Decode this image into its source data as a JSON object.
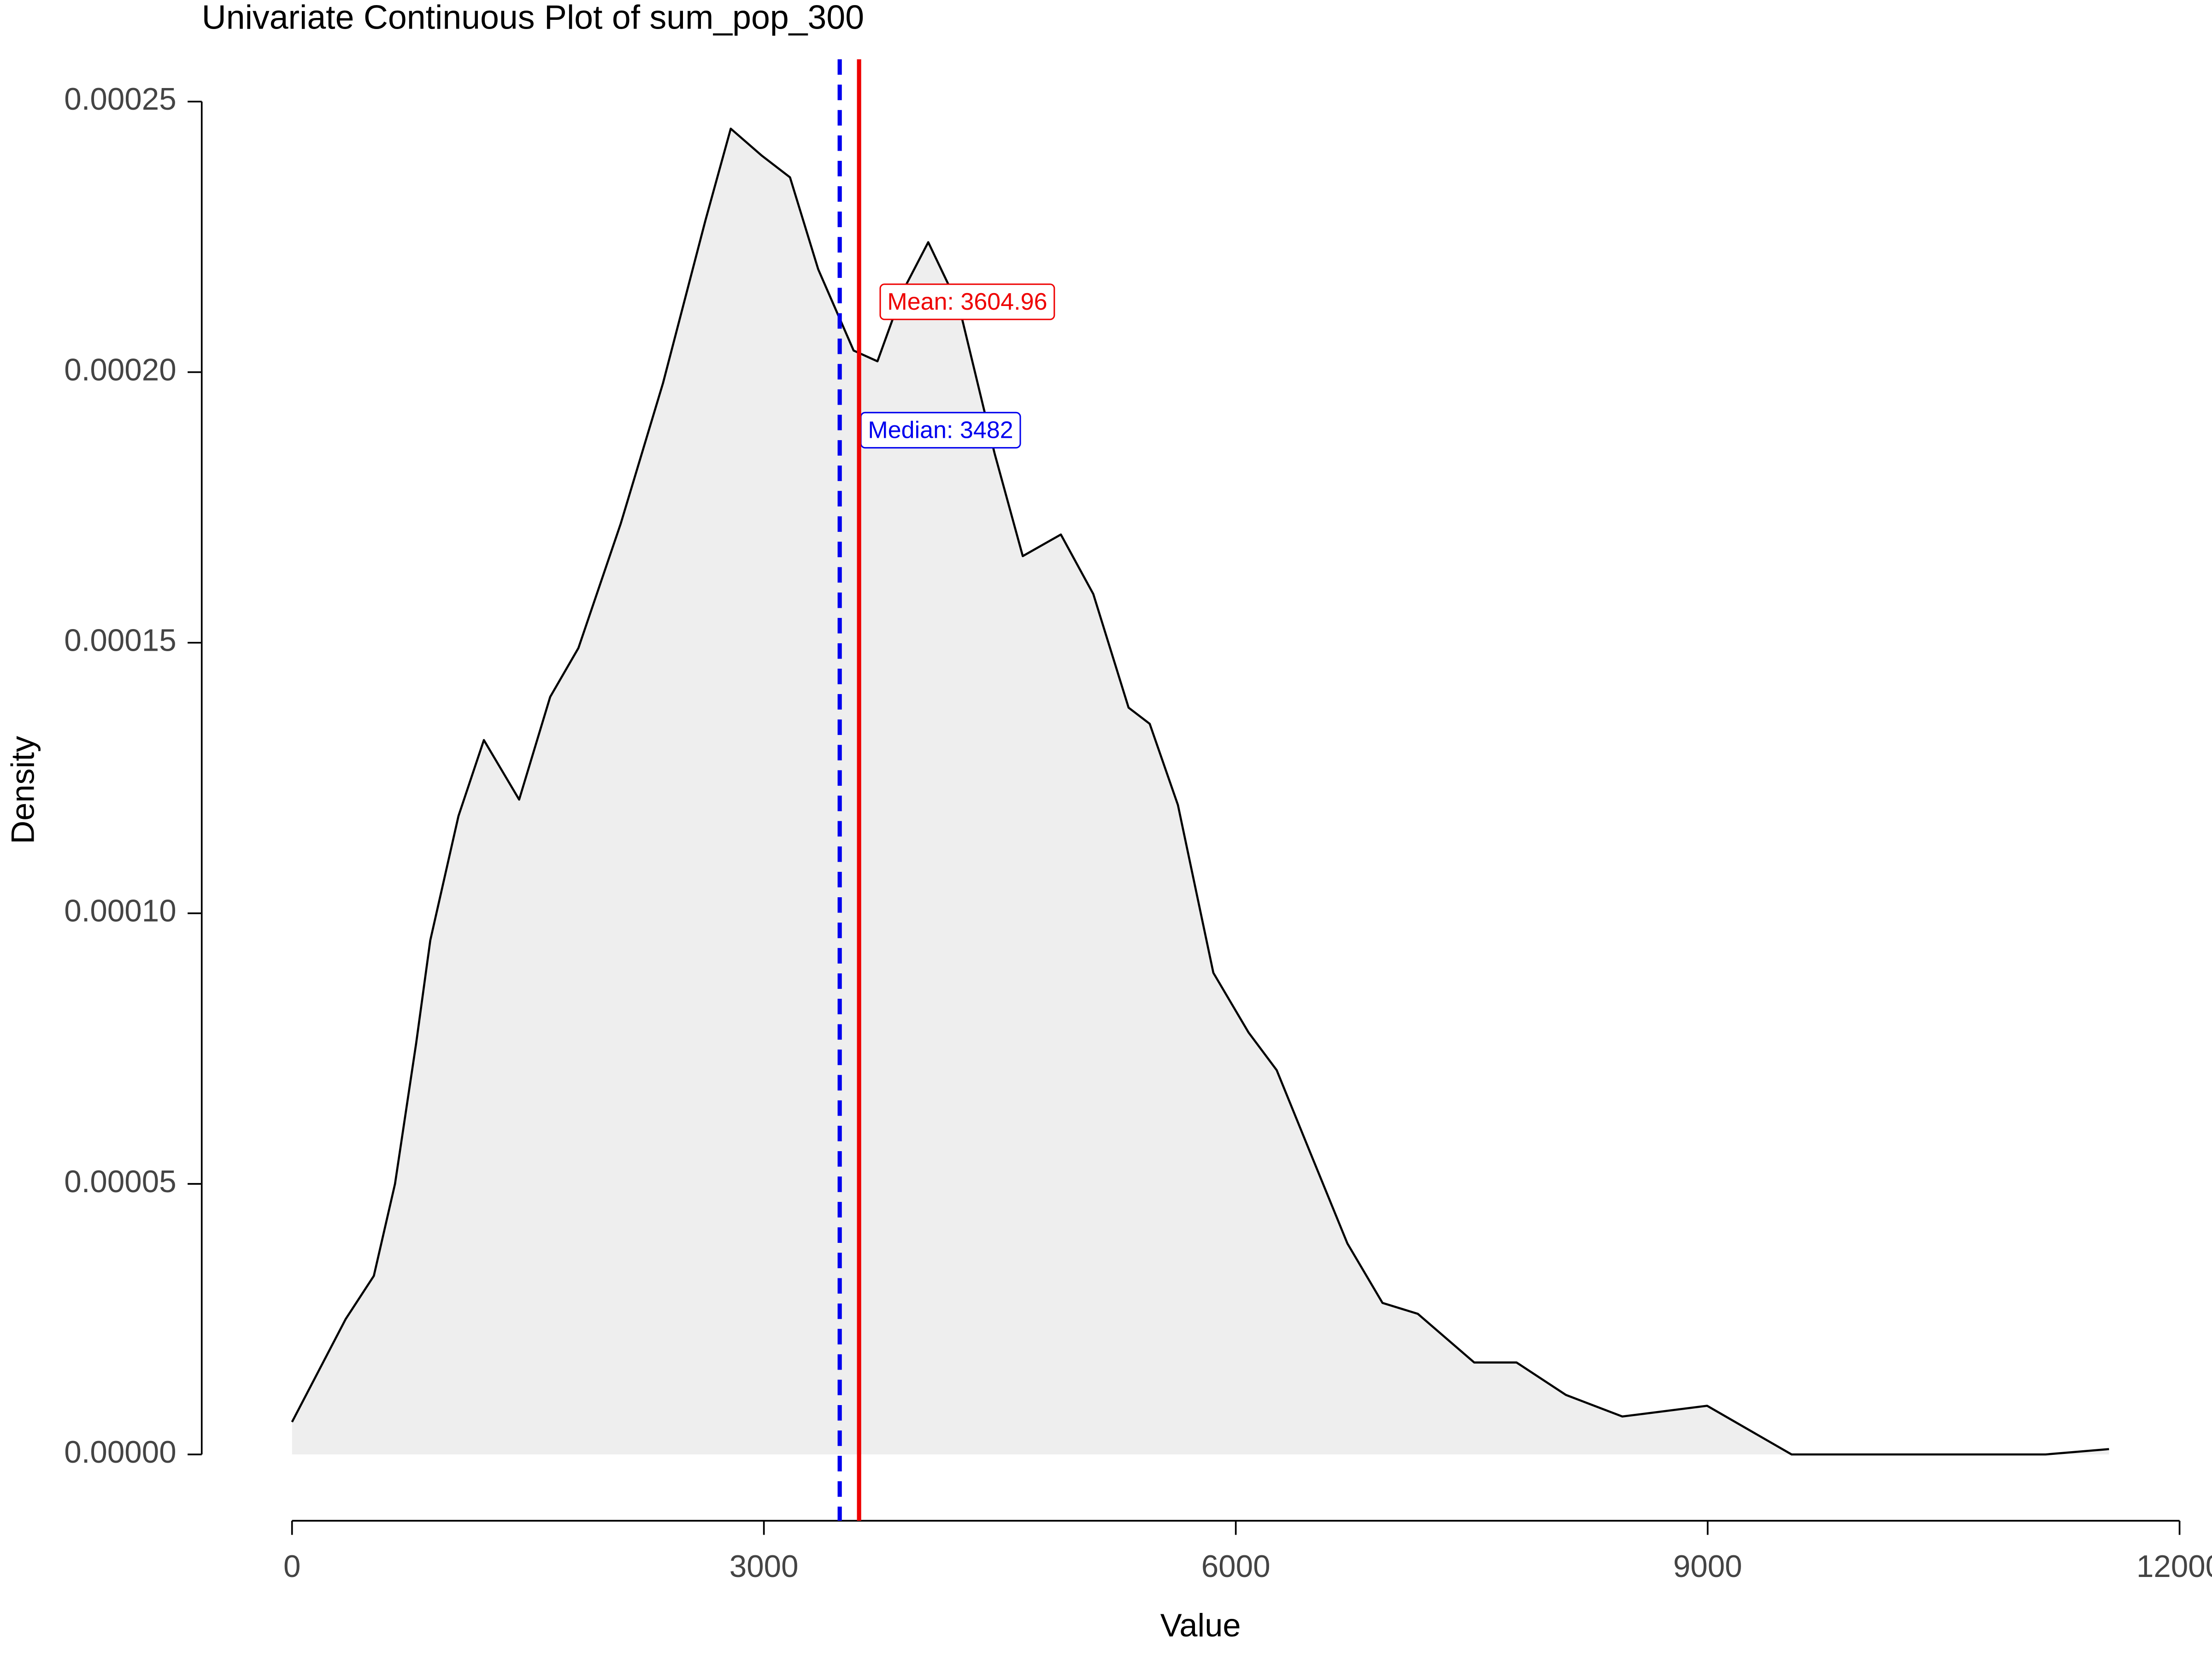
{
  "chart_data": {
    "type": "density",
    "title": "Univariate Continuous Plot of sum_pop_300",
    "xlabel": "Value",
    "ylabel": "Density",
    "x": [
      0,
      341,
      520,
      655,
      789,
      879,
      1058,
      1220,
      1444,
      1641,
      1821,
      2090,
      2359,
      2628,
      2789,
      2987,
      3166,
      3345,
      3570,
      3722,
      3883,
      4045,
      4242,
      4466,
      4646,
      4888,
      5094,
      5318,
      5453,
      5632,
      5857,
      6081,
      6260,
      6484,
      6709,
      6933,
      7157,
      7516,
      7785,
      8099,
      8457,
      8996,
      9534,
      10251,
      11148,
      11552
    ],
    "values": [
      6e-06,
      2.5e-05,
      3.3e-05,
      5e-05,
      7.6e-05,
      9.5e-05,
      0.000118,
      0.000132,
      0.000121,
      0.00014,
      0.000149,
      0.000172,
      0.000198,
      0.000228,
      0.000245,
      0.00024,
      0.000236,
      0.000219,
      0.000204,
      0.000202,
      0.000215,
      0.000224,
      0.000212,
      0.000185,
      0.000166,
      0.00017,
      0.000159,
      0.000138,
      0.000135,
      0.00012,
      8.9e-05,
      7.8e-05,
      7.1e-05,
      5.5e-05,
      3.9e-05,
      2.8e-05,
      2.6e-05,
      1.7e-05,
      1.7e-05,
      1.1e-05,
      7e-06,
      9e-06,
      0,
      0,
      0,
      1e-06
    ],
    "color": "#000000",
    "fill_color": "#eeeeee",
    "mean": 3604.96,
    "mean_label": "Mean: 3604.96",
    "mean_color": "#ee0000",
    "mean_linestyle": "solid",
    "median": 3482,
    "median_label": "Median: 3482",
    "median_color": "#0000ee",
    "median_linestyle": "dashed",
    "xlim": [
      0,
      12000
    ],
    "xticks": [
      0,
      3000,
      6000,
      9000,
      12000
    ],
    "ylim": [
      0,
      0.00025
    ],
    "yticks": [
      {
        "value": 0,
        "label": "0.00000"
      },
      {
        "value": 5e-05,
        "label": "0.00005"
      },
      {
        "value": 0.0001,
        "label": "0.00010"
      },
      {
        "value": 0.00015,
        "label": "0.00015"
      },
      {
        "value": 0.0002,
        "label": "0.00020"
      },
      {
        "value": 0.00025,
        "label": "0.00025"
      }
    ],
    "grid": false
  }
}
